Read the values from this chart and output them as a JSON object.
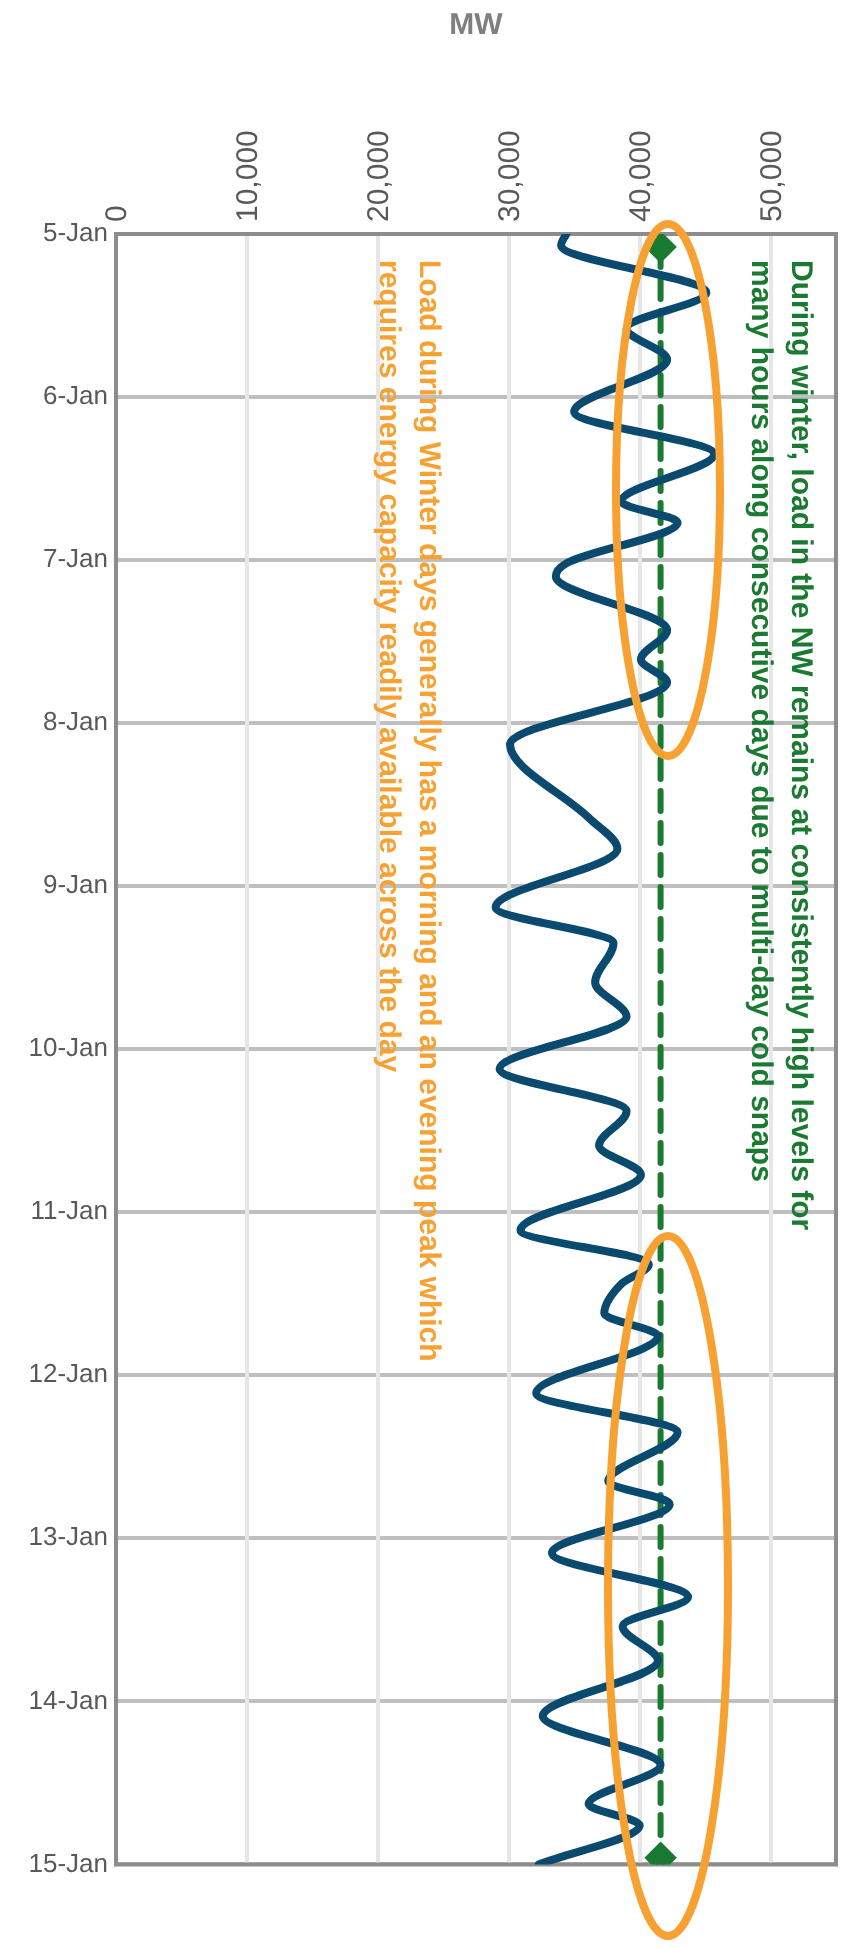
{
  "chart_data": {
    "type": "line",
    "orientation": "horizontal",
    "xlabel": "MW",
    "ylim": [
      "--01-15",
      "--01-05"
    ],
    "yticks": [
      {
        "value": "--01-05",
        "label": "5-Jan"
      },
      {
        "value": "--01-06",
        "label": "6-Jan"
      },
      {
        "value": "--01-07",
        "label": "7-Jan"
      },
      {
        "value": "--01-08",
        "label": "8-Jan"
      },
      {
        "value": "--01-09",
        "label": "9-Jan"
      },
      {
        "value": "--01-10",
        "label": "10-Jan"
      },
      {
        "value": "--01-11",
        "label": "11-Jan"
      },
      {
        "value": "--01-12",
        "label": "12-Jan"
      },
      {
        "value": "--01-13",
        "label": "13-Jan"
      },
      {
        "value": "--01-14",
        "label": "14-Jan"
      },
      {
        "value": "--01-15",
        "label": "15-Jan"
      }
    ],
    "xlim": [
      0,
      55000
    ],
    "xticks": [
      {
        "value": 0,
        "label": "0"
      },
      {
        "value": 10000,
        "label": "10,000"
      },
      {
        "value": 20000,
        "label": "20,000"
      },
      {
        "value": 30000,
        "label": "30,000"
      },
      {
        "value": 40000,
        "label": "40,000"
      },
      {
        "value": 50000,
        "label": "50,000"
      }
    ],
    "grid": true,
    "legend": false,
    "series": [
      {
        "color": "#0b4a6f",
        "marker": "none",
        "line_style": "solid",
        "x": [
          "--01-05T00:00",
          "--01-05T01:40",
          "--01-05T08:38",
          "--01-05T13:55",
          "--01-05T18:29",
          "--01-06T02:10",
          "--01-06T08:24",
          "--01-06T15:22",
          "--01-06T18:29",
          "--01-07T00:29",
          "--01-07T02:24",
          "--01-07T10:19",
          "--01-07T14:38",
          "--01-07T18:00",
          "--01-08T03:07",
          "--01-08T13:55",
          "--01-08T18:29",
          "--01-09T03:07",
          "--01-09T08:24",
          "--01-09T14:10",
          "--01-09T19:12",
          "--01-10T02:53",
          "--01-10T09:07",
          "--01-10T14:10",
          "--01-10T18:29",
          "--01-11T02:38",
          "--01-11T07:41",
          "--01-11T10:34",
          "--01-11T14:53",
          "--01-11T18:14",
          "--01-12T02:38",
          "--01-12T08:24",
          "--01-12T15:36",
          "--01-12T18:58",
          "--01-13T02:10",
          "--01-13T08:38",
          "--01-13T12:58",
          "--01-13T18:00",
          "--01-14T02:10",
          "--01-14T09:22",
          "--01-14T15:07",
          "--01-14T18:14",
          "--01-15T00:00"
        ],
        "values": [
          34400,
          34000,
          45100,
          39000,
          42100,
          35000,
          45700,
          38600,
          42900,
          34400,
          33600,
          42100,
          40100,
          42100,
          30100,
          36100,
          38300,
          29000,
          38000,
          36600,
          39000,
          29300,
          39000,
          36900,
          40100,
          30900,
          40700,
          38600,
          37300,
          41400,
          32100,
          42900,
          37600,
          42300,
          33300,
          43700,
          38700,
          41400,
          32600,
          41600,
          36100,
          40000,
          32300
        ]
      },
      {
        "color": "#1b7a31",
        "marker": "diamond",
        "line_style": "dashed",
        "x": [
          "--01-05T01:55",
          "--01-14T23:02"
        ],
        "values": [
          41600,
          41600
        ]
      }
    ],
    "annotations": [
      "During winter, load in the NW remains at consistently high levels for\nmany hours along consecutive days due to multi-day cold snaps",
      "Load during Winter days generally has a morning and an evening peak which\nrequires energy capacity readily available across the day"
    ]
  }
}
